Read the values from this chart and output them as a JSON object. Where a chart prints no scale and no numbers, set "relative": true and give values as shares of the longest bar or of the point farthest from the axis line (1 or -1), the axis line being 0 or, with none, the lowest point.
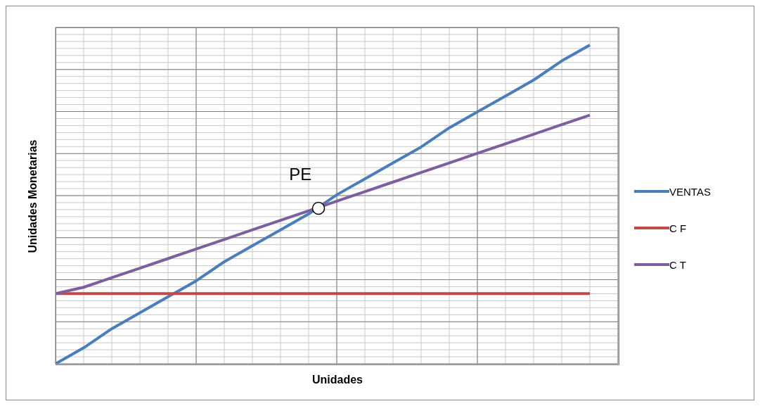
{
  "chart_data": {
    "type": "line",
    "relative": true,
    "xlabel": "Unidades",
    "ylabel": "Unidades Monetarias",
    "grid": true,
    "legend": "right",
    "marker": "none",
    "categories": [
      null,
      null,
      null,
      null,
      null,
      null,
      null,
      null,
      null,
      null,
      null,
      null,
      null,
      null,
      null,
      null,
      null,
      null,
      null,
      null
    ],
    "series": [
      {
        "name": "VENTAS",
        "color": "#4a7ebb",
        "values": [
          0,
          0.05,
          0.11,
          0.16,
          0.21,
          0.26,
          0.32,
          0.37,
          0.42,
          0.47,
          0.53,
          0.58,
          0.63,
          0.68,
          0.74,
          0.79,
          0.84,
          0.89,
          0.95,
          1
        ]
      },
      {
        "name": "C F",
        "color": "#be4b48",
        "values": [
          0.22,
          0.22,
          0.22,
          0.22,
          0.22,
          0.22,
          0.22,
          0.22,
          0.22,
          0.22,
          0.22,
          0.22,
          0.22,
          0.22,
          0.22,
          0.22,
          0.22,
          0.22,
          0.22,
          0.22
        ]
      },
      {
        "name": "C T",
        "color": "#7d5fa0",
        "values": [
          0.22,
          0.24,
          0.27,
          0.3,
          0.33,
          0.36,
          0.39,
          0.42,
          0.45,
          0.48,
          0.51,
          0.54,
          0.57,
          0.6,
          0.63,
          0.66,
          0.69,
          0.72,
          0.75,
          0.78
        ]
      }
    ],
    "annotations": [
      "PE"
    ]
  }
}
